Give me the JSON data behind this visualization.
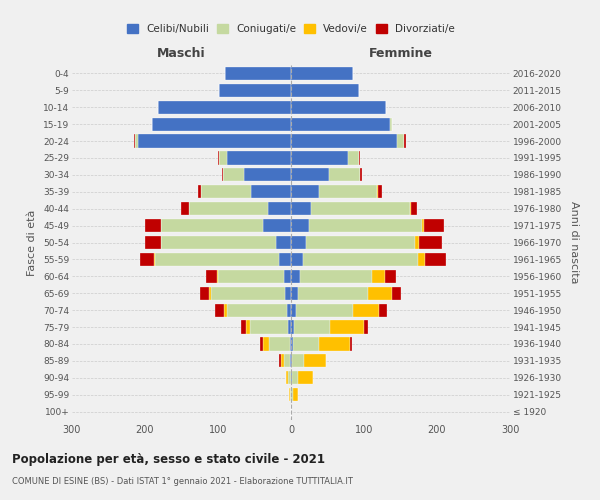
{
  "age_groups": [
    "100+",
    "95-99",
    "90-94",
    "85-89",
    "80-84",
    "75-79",
    "70-74",
    "65-69",
    "60-64",
    "55-59",
    "50-54",
    "45-49",
    "40-44",
    "35-39",
    "30-34",
    "25-29",
    "20-24",
    "15-19",
    "10-14",
    "5-9",
    "0-4"
  ],
  "birth_years": [
    "≤ 1920",
    "1921-1925",
    "1926-1930",
    "1931-1935",
    "1936-1940",
    "1941-1945",
    "1946-1950",
    "1951-1955",
    "1956-1960",
    "1961-1965",
    "1966-1970",
    "1971-1975",
    "1976-1980",
    "1981-1985",
    "1986-1990",
    "1991-1995",
    "1996-2000",
    "2001-2005",
    "2006-2010",
    "2011-2015",
    "2016-2020"
  ],
  "males_celibe": [
    0,
    0,
    0,
    1,
    2,
    4,
    6,
    8,
    10,
    16,
    20,
    38,
    32,
    55,
    65,
    88,
    210,
    190,
    182,
    98,
    90
  ],
  "males_coniugato": [
    0,
    2,
    4,
    8,
    28,
    52,
    82,
    102,
    90,
    170,
    158,
    140,
    108,
    68,
    28,
    10,
    4,
    0,
    0,
    0,
    0
  ],
  "males_vedovo": [
    0,
    1,
    3,
    5,
    8,
    5,
    4,
    3,
    2,
    1,
    0,
    0,
    0,
    0,
    0,
    0,
    0,
    0,
    0,
    0,
    0
  ],
  "males_divorziato": [
    0,
    0,
    0,
    2,
    5,
    8,
    12,
    12,
    14,
    20,
    22,
    22,
    10,
    5,
    2,
    2,
    1,
    0,
    0,
    0,
    0
  ],
  "females_nubile": [
    0,
    0,
    2,
    2,
    3,
    4,
    7,
    10,
    13,
    16,
    20,
    24,
    28,
    38,
    52,
    78,
    145,
    135,
    130,
    93,
    85
  ],
  "females_coniugata": [
    0,
    3,
    8,
    16,
    36,
    50,
    78,
    96,
    98,
    158,
    150,
    155,
    135,
    80,
    42,
    15,
    10,
    3,
    0,
    0,
    0
  ],
  "females_vedova": [
    0,
    6,
    20,
    30,
    42,
    46,
    36,
    32,
    18,
    10,
    5,
    3,
    2,
    1,
    0,
    0,
    0,
    0,
    0,
    0,
    0
  ],
  "females_divorziata": [
    0,
    0,
    0,
    0,
    2,
    5,
    10,
    12,
    15,
    28,
    32,
    28,
    8,
    5,
    3,
    2,
    2,
    0,
    0,
    0,
    0
  ],
  "colors": {
    "celibe": "#4472c4",
    "coniugato": "#c5d9a0",
    "vedovo": "#ffc000",
    "divorziato": "#c00000"
  },
  "xlim": 300,
  "title": "Popolazione per età, sesso e stato civile - 2021",
  "subtitle": "COMUNE DI ESINE (BS) - Dati ISTAT 1° gennaio 2021 - Elaborazione TUTTITALIA.IT",
  "ylabel_left": "Fasce di età",
  "ylabel_right": "Anni di nascita",
  "xlabel_left": "Maschi",
  "xlabel_right": "Femmine",
  "bg_color": "#f0f0f0"
}
